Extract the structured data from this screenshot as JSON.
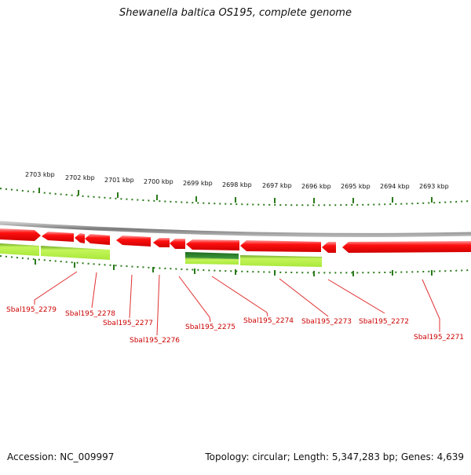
{
  "title": "Shewanella baltica OS195, complete genome",
  "footer": {
    "accession": "Accession: NC_009997",
    "summary": "Topology: circular; Length: 5,347,283 bp; Genes: 4,639"
  },
  "scale_labels": [
    "2703 kbp",
    "2702 kbp",
    "2701 kbp",
    "2700 kbp",
    "2699 kbp",
    "2698 kbp",
    "2697 kbp",
    "2696 kbp",
    "2695 kbp",
    "2694 kbp",
    "2693 kbp"
  ],
  "gene_labels": [
    "Sbal195_2279",
    "Sbal195_2278",
    "Sbal195_2277",
    "Sbal195_2276",
    "Sbal195_2275",
    "Sbal195_2274",
    "Sbal195_2273",
    "Sbal195_2272",
    "Sbal195_2271"
  ],
  "colors": {
    "gene_red": "#ff0000",
    "feature_lime": "#b8f040",
    "feature_dark_green": "#2e8a2e",
    "tick_green": "#2a7a1a",
    "backbone_gray": "#888888",
    "label_red": "#cc0000"
  }
}
